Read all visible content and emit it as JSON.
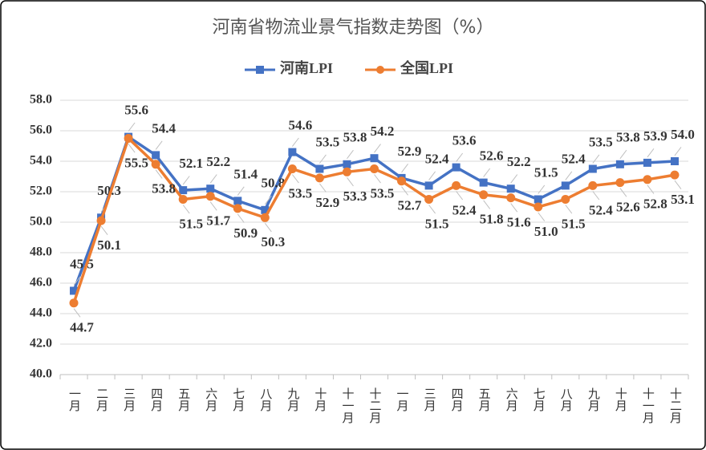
{
  "chart_data": {
    "type": "line",
    "title": "河南省物流业景气指数走势图（%）",
    "categories": [
      "一月",
      "二月",
      "三月",
      "四月",
      "五月",
      "六月",
      "七月",
      "八月",
      "九月",
      "十月",
      "十一月",
      "十二月",
      "一月",
      "三月",
      "四月",
      "五月",
      "六月",
      "七月",
      "八月",
      "九月",
      "十月",
      "十一月",
      "十二月"
    ],
    "series": [
      {
        "name": "河南LPI",
        "color": "#4472c4",
        "marker": "square",
        "values": [
          45.5,
          50.3,
          55.6,
          54.4,
          52.1,
          52.2,
          51.4,
          50.8,
          54.6,
          53.5,
          53.8,
          54.2,
          52.9,
          52.4,
          53.6,
          52.6,
          52.2,
          51.5,
          52.4,
          53.5,
          53.8,
          53.9,
          54.0
        ],
        "value_labels": [
          "45.5",
          "50.3",
          "55.6",
          "54.4",
          "52.1",
          "52.2",
          "51.4",
          "50.8",
          "54.6",
          "53.5",
          "53.8",
          "54.2",
          "52.9",
          "52.4",
          "53.6",
          "52.6",
          "52.2",
          "51.5",
          "52.4",
          "53.5",
          "53.8",
          "53.9",
          "54.0"
        ]
      },
      {
        "name": "全国LPI",
        "color": "#ed7d31",
        "marker": "circle",
        "values": [
          44.7,
          50.1,
          55.5,
          53.8,
          51.5,
          51.7,
          50.9,
          50.3,
          53.5,
          52.9,
          53.3,
          53.5,
          52.7,
          51.5,
          52.4,
          51.8,
          51.6,
          51.0,
          51.5,
          52.4,
          52.6,
          52.8,
          53.1
        ],
        "value_labels": [
          "44.7",
          "50.1",
          "55.5",
          "53.8",
          "51.5",
          "51.7",
          "50.9",
          "50.3",
          "53.5",
          "52.9",
          "53.3",
          "53.5",
          "52.7",
          "51.5",
          "52.4",
          "51.8",
          "51.6",
          "51.0",
          "51.5",
          "52.4",
          "52.6",
          "52.8",
          "53.1"
        ]
      }
    ],
    "ylim": [
      40,
      58
    ],
    "yticks": [
      {
        "value": 40,
        "label": "40.0"
      },
      {
        "value": 42,
        "label": "42.0"
      },
      {
        "value": 44,
        "label": "44.0"
      },
      {
        "value": 46,
        "label": "46.0"
      },
      {
        "value": 48,
        "label": "48.0"
      },
      {
        "value": 50,
        "label": "50.0"
      },
      {
        "value": 52,
        "label": "52.0"
      },
      {
        "value": 54,
        "label": "54.0"
      },
      {
        "value": 56,
        "label": "56.0"
      },
      {
        "value": 58,
        "label": "58.0"
      }
    ],
    "grid": true,
    "legend": "top"
  }
}
